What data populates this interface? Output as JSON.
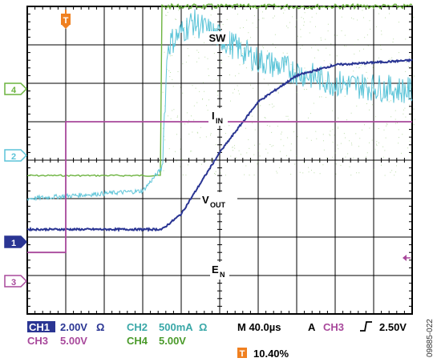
{
  "chart_data": {
    "type": "line",
    "title": "",
    "grid": true,
    "timebase": "M 40.0µs",
    "trigger": {
      "source": "A",
      "channel": "CH3",
      "level": "2.50V"
    },
    "trigger_position": "10.40%",
    "trace_labels": {
      "sw": "SW",
      "iin_main": "I",
      "iin_sub": "IN",
      "vout_main": "V",
      "vout_sub": "OUT",
      "en_main": "E",
      "en_sub": "N"
    },
    "channels": [
      {
        "id": "1",
        "name": "CH1",
        "scale": "2.00V",
        "coupling": "Ω",
        "signal": "VOUT",
        "color": "#2a3593"
      },
      {
        "id": "2",
        "name": "CH2",
        "scale": "500mA",
        "coupling": "Ω",
        "signal": "IIN",
        "color": "#5bc4d8"
      },
      {
        "id": "3",
        "name": "CH3",
        "scale": "5.00V",
        "signal": "EN",
        "color": "#a8489b"
      },
      {
        "id": "4",
        "name": "CH4",
        "scale": "5.00V",
        "signal": "SW",
        "color": "#6cb33f"
      }
    ],
    "x_divisions": 10,
    "y_divisions": 8,
    "series": [
      {
        "name": "SW",
        "x": [
          0,
          3.5,
          3.5,
          10
        ],
        "y": [
          -0.1,
          -0.1,
          1.0,
          1.0
        ]
      },
      {
        "name": "IIN",
        "x": [
          0,
          3.0,
          3.5,
          3.65,
          4.3,
          6.0,
          8.0,
          10
        ],
        "y": [
          -0.25,
          -0.2,
          -0.05,
          0.75,
          0.9,
          0.65,
          0.5,
          0.45
        ]
      },
      {
        "name": "VOUT",
        "x": [
          0,
          3.5,
          4.0,
          5.0,
          6.0,
          7.0,
          8.0,
          10
        ],
        "y": [
          -0.45,
          -0.45,
          -0.35,
          0.05,
          0.38,
          0.55,
          0.62,
          0.65
        ]
      },
      {
        "name": "EN",
        "x": [
          0,
          1.0,
          1.0,
          10
        ],
        "y": [
          -0.6,
          -0.6,
          0.25,
          0.25
        ]
      }
    ]
  },
  "readout": {
    "ch1_name": "CH1",
    "ch1_scale": "2.00V",
    "ch1_coupling": "Ω",
    "ch2_name": "CH2",
    "ch2_scale": "500mA",
    "ch2_coupling": "Ω",
    "ch3_name": "CH3",
    "ch3_scale": "5.00V",
    "ch4_name": "CH4",
    "ch4_scale": "5.00V",
    "timebase": "M 40.0µs",
    "trig_mode": "A",
    "trig_channel": "CH3",
    "trig_level": "2.50V",
    "trig_icon": "T",
    "trig_pos": "10.40%"
  },
  "figure_code": "09885-022",
  "colors": {
    "sw": "#6cb33f",
    "iin": "#5bc4d8",
    "vout": "#2a3593",
    "en": "#a8489b",
    "trigger": "#f08020",
    "grid": "#000000"
  }
}
